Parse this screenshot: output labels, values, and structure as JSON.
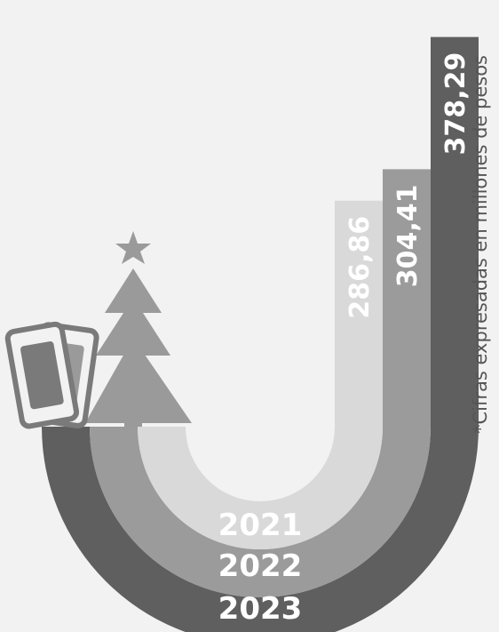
{
  "chart_data": {
    "type": "bar",
    "categories": [
      "2021",
      "2022",
      "2023"
    ],
    "values": [
      286.86,
      304.41,
      378.29
    ],
    "value_labels": [
      "286,86",
      "304,41",
      "378,29"
    ],
    "note": "*Cifras expresadas en millones de pesos"
  },
  "colors": {
    "background": "#f2f2f2",
    "bar_2021": "#d9d9d9",
    "bar_2022": "#9b9b9b",
    "bar_2023": "#5f5f5f",
    "text": "#ffffff",
    "tree": "#9a9a9a",
    "tickets": "#7a7a7a"
  },
  "icons": [
    "christmas-tree-icon",
    "star-icon",
    "tickets-icon"
  ]
}
